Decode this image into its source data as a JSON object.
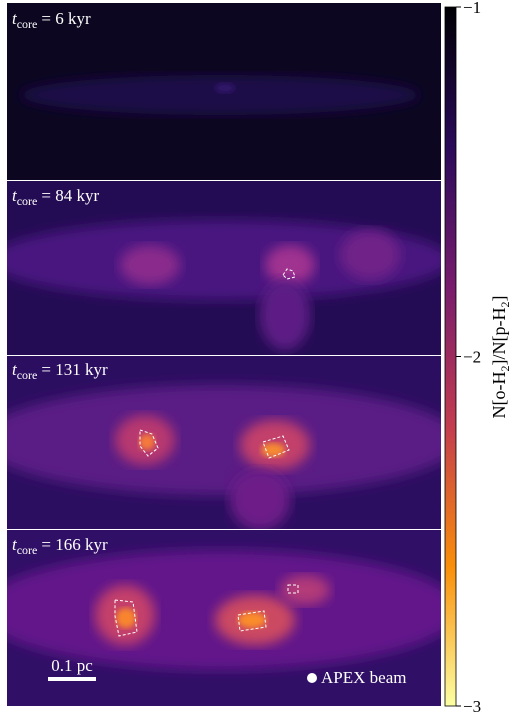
{
  "panels": [
    {
      "var": "t",
      "sub": "core",
      "rest": "= 6 kyr"
    },
    {
      "var": "t",
      "sub": "core",
      "rest": "= 84 kyr"
    },
    {
      "var": "t",
      "sub": "core",
      "rest": "= 131 kyr"
    },
    {
      "var": "t",
      "sub": "core",
      "rest": "= 166 kyr"
    }
  ],
  "scale_bar": "0.1 pc",
  "beam_label": "APEX beam",
  "colorbar": {
    "label_parts": [
      "N[o-H",
      "2",
      "]/N[p-H",
      "2",
      "]"
    ],
    "clim": [
      -1,
      -3
    ],
    "ticks": [
      {
        "value": -1,
        "label": "−1"
      },
      {
        "value": -2,
        "label": "−2"
      },
      {
        "value": -3,
        "label": "−3"
      }
    ]
  }
}
